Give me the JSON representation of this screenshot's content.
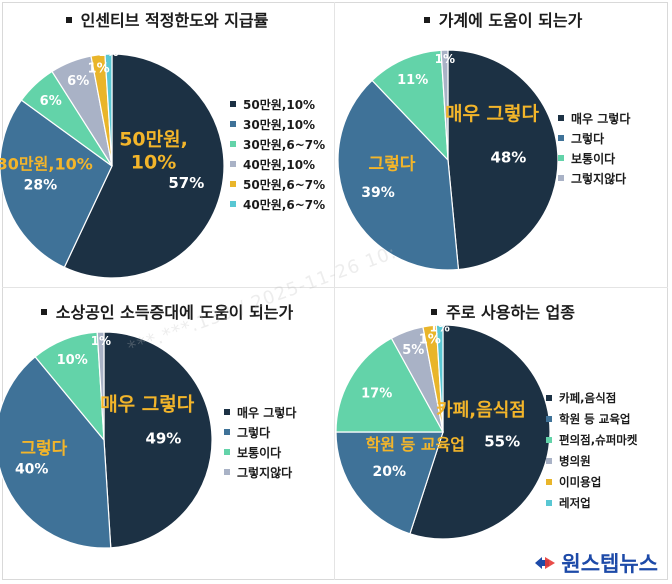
{
  "colors": {
    "navy": "#1c3144",
    "steel": "#3f7298",
    "mint": "#63d3a9",
    "gray": "#a9b2c6",
    "gold": "#e9b52a",
    "cyan": "#59c7d3",
    "gold_label": "#f3b52a",
    "white_label": "#ffffff"
  },
  "chart_data": [
    {
      "type": "pie",
      "title": "인센티브 적정한도와 지급률",
      "labels": [
        "50만원,10%",
        "30만원,10%",
        "30만원,6~7%",
        "40만원,10%",
        "50만원,6~7%",
        "40만원,6~7%"
      ],
      "values": [
        57,
        28,
        6,
        6,
        2,
        1
      ],
      "percent_labels": [
        "57%",
        "28%",
        "6%",
        "6%",
        "",
        "1%"
      ],
      "extra_labels": [
        "",
        "",
        "",
        "",
        "",
        "1%"
      ],
      "callouts": [
        "50만원,\n10%",
        "30만원,10%",
        "",
        "",
        "",
        ""
      ],
      "legend_position": "right"
    },
    {
      "type": "pie",
      "title": "가계에 도움이 되는가",
      "labels": [
        "매우 그렇다",
        "그렇다",
        "보통이다",
        "그렇지않다"
      ],
      "values": [
        48,
        39,
        11,
        1
      ],
      "percent_labels": [
        "48%",
        "39%",
        "11%",
        "1%"
      ],
      "extra_labels": [
        "",
        "",
        "",
        ""
      ],
      "callouts": [
        "매우 그렇다",
        "그렇다",
        "",
        ""
      ],
      "legend_position": "right"
    },
    {
      "type": "pie",
      "title": "소상공인 소득증대에 도움이 되는가",
      "labels": [
        "매우 그렇다",
        "그렇다",
        "보통이다",
        "그렇지않다"
      ],
      "values": [
        49,
        40,
        10,
        1
      ],
      "percent_labels": [
        "49%",
        "40%",
        "10%",
        "1%"
      ],
      "extra_labels": [
        "",
        "",
        "",
        ""
      ],
      "callouts": [
        "매우 그렇다",
        "그렇다",
        "",
        ""
      ],
      "legend_position": "right"
    },
    {
      "type": "pie",
      "title": "주로 사용하는 업종",
      "labels": [
        "카페,음식점",
        "학원 등 교육업",
        "편의점,슈퍼마켓",
        "병의원",
        "이미용업",
        "레저업"
      ],
      "values": [
        55,
        20,
        17,
        5,
        2,
        1
      ],
      "percent_labels": [
        "55%",
        "20%",
        "17%",
        "5%",
        "",
        "1%"
      ],
      "extra_labels": [
        "",
        "",
        "",
        "",
        "",
        "1%"
      ],
      "callouts": [
        "카페,음식점",
        "학원 등 교육업",
        "",
        "",
        "",
        ""
      ],
      "legend_position": "right"
    }
  ],
  "watermark": "***.***.133 / 2025-11-26 10:",
  "logo": {
    "text": "원스텝뉴스",
    "icon": "onestep-news-logo-icon"
  }
}
